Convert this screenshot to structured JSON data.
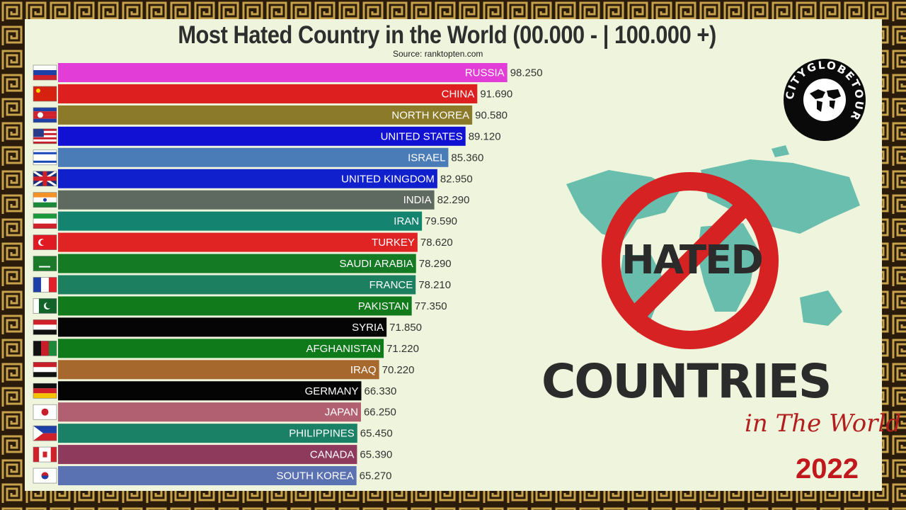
{
  "title": "Most Hated Country in the World (00.000 - | 100.000 +)",
  "source": "Source: ranktopten.com",
  "year": "2022",
  "badge": {
    "logo_text": "CITYGLOBETOUR"
  },
  "promo": {
    "word1": "HATED",
    "word2": "COUNTRIES",
    "word3": "in The World"
  },
  "colors": {
    "border_gold": "#c7a24a",
    "border_dark": "#2a1b0a",
    "background": "#eef5dc",
    "map": "#5ab8a8",
    "no_sign": "#d62222",
    "year": "#c0181c"
  },
  "chart_data": {
    "type": "bar",
    "orientation": "horizontal",
    "categories": [
      "RUSSIA",
      "CHINA",
      "NORTH KOREA",
      "UNITED STATES",
      "ISRAEL",
      "UNITED KINGDOM",
      "INDIA",
      "IRAN",
      "TURKEY",
      "SAUDI ARABIA",
      "FRANCE",
      "PAKISTAN",
      "SYRIA",
      "AFGHANISTAN",
      "IRAQ",
      "GERMANY",
      "JAPAN",
      "PHILIPPINES",
      "CANADA",
      "SOUTH KOREA"
    ],
    "values": [
      98.25,
      91.69,
      90.58,
      89.12,
      85.36,
      82.95,
      82.29,
      79.59,
      78.62,
      78.29,
      78.21,
      77.35,
      71.85,
      71.22,
      70.22,
      66.33,
      66.25,
      65.45,
      65.39,
      65.27
    ],
    "value_labels": [
      "98.250",
      "91.690",
      "90.580",
      "89.120",
      "85.360",
      "82.950",
      "82.290",
      "79.590",
      "78.620",
      "78.290",
      "78.210",
      "77.350",
      "71.850",
      "71.220",
      "70.220",
      "66.330",
      "66.250",
      "65.450",
      "65.390",
      "65.270"
    ],
    "bar_colors": [
      "#e23dd6",
      "#dd1f1f",
      "#8a7a2a",
      "#1111d4",
      "#4a7cb8",
      "#1020cc",
      "#5e6a60",
      "#148470",
      "#e02424",
      "#157a24",
      "#1c8060",
      "#117a1a",
      "#050505",
      "#0e7a1a",
      "#a6682c",
      "#040404",
      "#b06070",
      "#1a8066",
      "#8e3a5c",
      "#5a72b2"
    ],
    "flags": [
      "russia-flag",
      "china-flag",
      "north-korea-flag",
      "united-states-flag",
      "israel-flag",
      "united-kingdom-flag",
      "india-flag",
      "iran-flag",
      "turkey-flag",
      "saudi-arabia-flag",
      "france-flag",
      "pakistan-flag",
      "syria-flag",
      "afghanistan-flag",
      "iraq-flag",
      "germany-flag",
      "japan-flag",
      "philippines-flag",
      "canada-flag",
      "south-korea-flag"
    ],
    "xlim": [
      0,
      100
    ],
    "xlabel": "",
    "ylabel": "",
    "grid": false
  }
}
